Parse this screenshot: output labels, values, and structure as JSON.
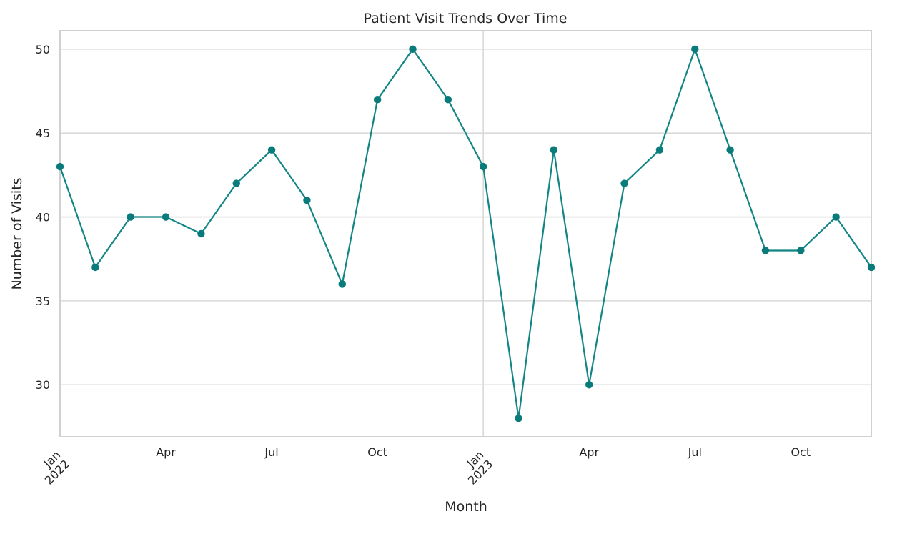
{
  "chart_data": {
    "type": "line",
    "title": "Patient Visit Trends Over Time",
    "xlabel": "Month",
    "ylabel": "Number of Visits",
    "x": [
      "2022-01",
      "2022-02",
      "2022-03",
      "2022-04",
      "2022-05",
      "2022-06",
      "2022-07",
      "2022-08",
      "2022-09",
      "2022-10",
      "2022-11",
      "2022-12",
      "2023-01",
      "2023-02",
      "2023-03",
      "2023-04",
      "2023-05",
      "2023-06",
      "2023-07",
      "2023-08",
      "2023-09",
      "2023-10",
      "2023-11",
      "2023-12"
    ],
    "series": [
      {
        "values": [
          43,
          37,
          40,
          40,
          39,
          42,
          44,
          41,
          36,
          47,
          50,
          47,
          43,
          28,
          44,
          30,
          42,
          44,
          50,
          44,
          38,
          38,
          40,
          37
        ]
      }
    ],
    "ylim": [
      26.9,
      51.1
    ],
    "xlim": [
      "2022-01",
      "2023-12"
    ],
    "yticks": [
      30,
      35,
      40,
      45,
      50
    ],
    "xticks": [
      {
        "x": "2022-01",
        "label": "Jan",
        "label2": "2022"
      },
      {
        "x": "2022-04",
        "label": "Apr"
      },
      {
        "x": "2022-07",
        "label": "Jul"
      },
      {
        "x": "2022-10",
        "label": "Oct"
      },
      {
        "x": "2023-01",
        "label": "Jan",
        "label2": "2023"
      },
      {
        "x": "2023-04",
        "label": "Apr"
      },
      {
        "x": "2023-07",
        "label": "Jul"
      },
      {
        "x": "2023-10",
        "label": "Oct"
      }
    ],
    "grid": true,
    "colors": {
      "line": "#128585",
      "marker": "#0a7b7b",
      "grid": "#d9d9d9",
      "spine": "#d0d0d0"
    }
  }
}
